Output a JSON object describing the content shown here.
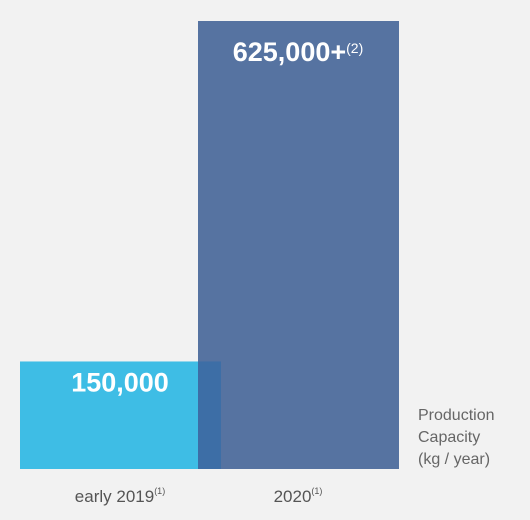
{
  "chart_data": {
    "type": "bar",
    "categories": [
      "early 2019",
      "2020"
    ],
    "category_footnotes": [
      "(1)",
      "(1)"
    ],
    "values": [
      150000,
      625000
    ],
    "value_labels": [
      "150,000",
      "625,000+"
    ],
    "value_footnotes": [
      "",
      "(2)"
    ],
    "colors": [
      "#3ebde5",
      "#5673a1"
    ],
    "overlap_color": "#3d6ea6",
    "ylim": [
      0,
      625000
    ],
    "ylabel": "Production\nCapacity\n(kg / year)",
    "grid": false,
    "legend": "none"
  }
}
